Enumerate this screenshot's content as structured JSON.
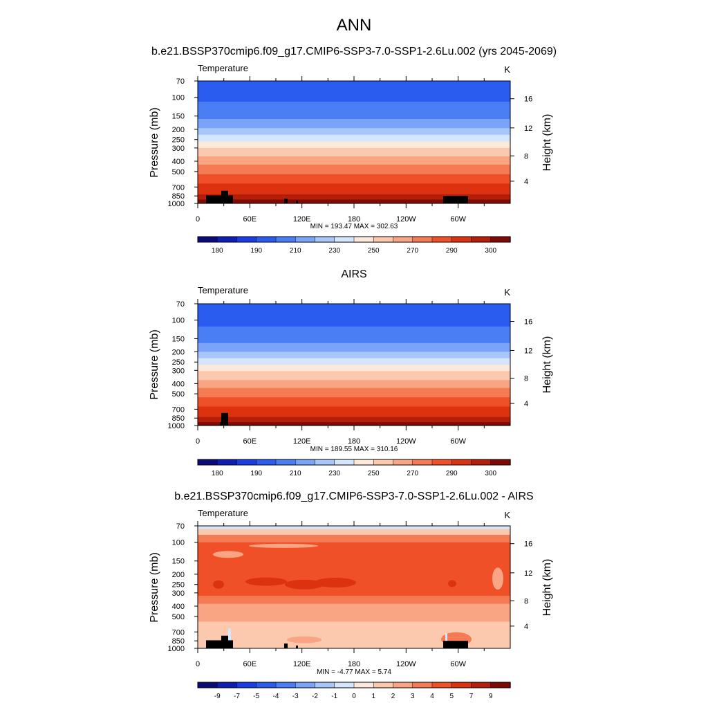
{
  "main_title": "ANN",
  "colors": {
    "temp_scale": [
      "#0a0a78",
      "#0d1fb4",
      "#1a3ee6",
      "#2b5cf0",
      "#4a7ef5",
      "#7aa4f8",
      "#a9c6fb",
      "#d3e6fd",
      "#fde9dc",
      "#fcc8ae",
      "#f9a583",
      "#f57b55",
      "#f05028",
      "#dc3210",
      "#b41e0a",
      "#7d0a05"
    ],
    "diff_scale": [
      "#0a0a78",
      "#0d1fb4",
      "#1a3ee6",
      "#2b5cf0",
      "#4a7ef5",
      "#7aa4f8",
      "#a9c6fb",
      "#d3e6fd",
      "#fde9dc",
      "#fcc8ae",
      "#f9a583",
      "#f57b55",
      "#f05028",
      "#dc3210",
      "#b41e0a",
      "#7d0a05"
    ],
    "terrain": "#000000"
  },
  "chart_data": [
    {
      "type": "heatmap",
      "panel_title": "b.e21.BSSP370cmip6.f09_g17.CMIP6-SSP3-7.0-SSP1-2.6Lu.002 (yrs 2045-2069)",
      "variable": "Temperature",
      "units": "K",
      "ylabel": "Pressure (mb)",
      "ylabel_right": "Height (km)",
      "x_ticks": [
        "0",
        "60E",
        "120E",
        "180",
        "120W",
        "60W"
      ],
      "y_ticks": [
        "70",
        "100",
        "150",
        "200",
        "250",
        "300",
        "400",
        "500",
        "700",
        "850",
        "1000"
      ],
      "height_ticks": [
        "16",
        "12",
        "8",
        "4"
      ],
      "stats": "MIN = 193.47  MAX = 302.63",
      "min": 193.47,
      "max": 302.63,
      "colorbar_labels": [
        "180",
        "190",
        "210",
        "230",
        "250",
        "270",
        "290",
        "300"
      ],
      "bands_by_pressure": [
        [
          70,
          2
        ],
        [
          110,
          3
        ],
        [
          160,
          4
        ],
        [
          195,
          5
        ],
        [
          225,
          6
        ],
        [
          260,
          7
        ],
        [
          300,
          8
        ],
        [
          360,
          9
        ],
        [
          430,
          10
        ],
        [
          530,
          11
        ],
        [
          650,
          12
        ],
        [
          820,
          13
        ],
        [
          920,
          14
        ],
        [
          1000,
          15
        ]
      ]
    },
    {
      "type": "heatmap",
      "panel_title": "AIRS",
      "variable": "Temperature",
      "units": "K",
      "ylabel": "Pressure (mb)",
      "ylabel_right": "Height (km)",
      "x_ticks": [
        "0",
        "60E",
        "120E",
        "180",
        "120W",
        "60W"
      ],
      "y_ticks": [
        "70",
        "100",
        "150",
        "200",
        "250",
        "300",
        "400",
        "500",
        "700",
        "850",
        "1000"
      ],
      "height_ticks": [
        "16",
        "12",
        "8",
        "4"
      ],
      "stats": "MIN = 189.55  MAX = 310.16",
      "min": 189.55,
      "max": 310.16,
      "colorbar_labels": [
        "180",
        "190",
        "210",
        "230",
        "250",
        "270",
        "290",
        "300"
      ],
      "bands_by_pressure": [
        [
          70,
          2
        ],
        [
          115,
          3
        ],
        [
          165,
          4
        ],
        [
          200,
          5
        ],
        [
          230,
          6
        ],
        [
          265,
          7
        ],
        [
          305,
          8
        ],
        [
          370,
          9
        ],
        [
          440,
          10
        ],
        [
          540,
          11
        ],
        [
          660,
          12
        ],
        [
          830,
          13
        ],
        [
          930,
          14
        ],
        [
          1000,
          15
        ]
      ]
    },
    {
      "type": "heatmap",
      "panel_title": "b.e21.BSSP370cmip6.f09_g17.CMIP6-SSP3-7.0-SSP1-2.6Lu.002 - AIRS",
      "variable": "Temperature",
      "units": "K",
      "ylabel": "Pressure (mb)",
      "ylabel_right": "Height (km)",
      "x_ticks": [
        "0",
        "60E",
        "120E",
        "180",
        "120W",
        "60W"
      ],
      "y_ticks": [
        "70",
        "100",
        "150",
        "200",
        "250",
        "300",
        "400",
        "500",
        "700",
        "850",
        "1000"
      ],
      "height_ticks": [
        "16",
        "12",
        "8",
        "4"
      ],
      "stats": "MIN =  -4.77  MAX =   5.74",
      "min": -4.77,
      "max": 5.74,
      "colorbar_labels": [
        "-9",
        "-7",
        "-5",
        "-4",
        "-3",
        "-2",
        "-1",
        "0",
        "1",
        "2",
        "3",
        "4",
        "5",
        "7",
        "9"
      ],
      "bands_by_pressure": [
        [
          75,
          7
        ],
        [
          85,
          9
        ],
        [
          100,
          11
        ],
        [
          175,
          12
        ],
        [
          320,
          12
        ],
        [
          380,
          11
        ],
        [
          560,
          10
        ],
        [
          880,
          9
        ],
        [
          1000,
          9
        ]
      ]
    }
  ]
}
